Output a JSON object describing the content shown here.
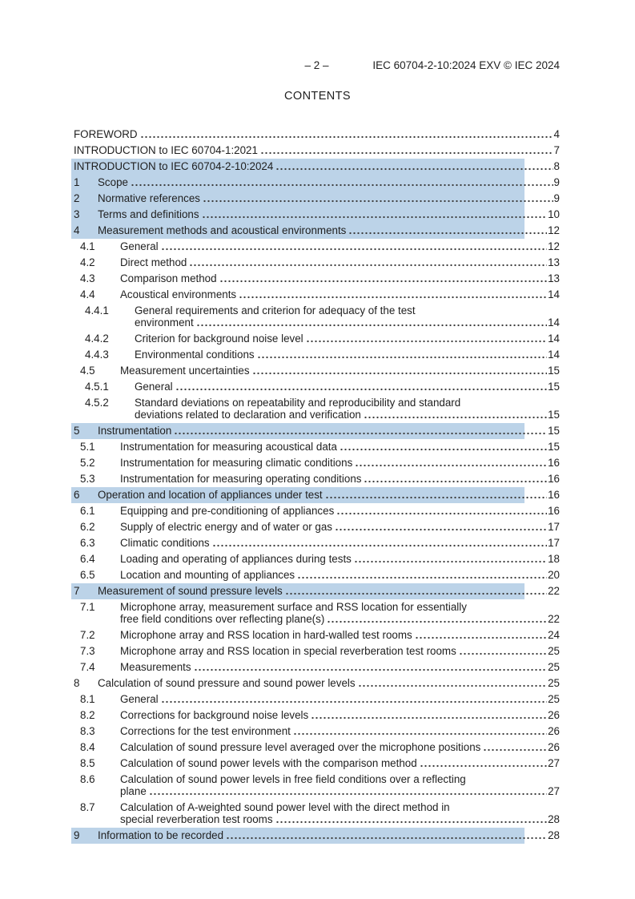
{
  "header": {
    "page_marker": "– 2 –",
    "doc_ref": "IEC 60704-2-10:2024 EXV © IEC 2024"
  },
  "title": "CONTENTS",
  "colors": {
    "highlight": "#bcd3e8",
    "text": "#1f1f1f"
  },
  "toc": {
    "entries": [
      {
        "level": 0,
        "num": "",
        "lines": [
          "FOREWORD"
        ],
        "page": "4",
        "hl": false
      },
      {
        "level": 0,
        "num": "",
        "lines": [
          "INTRODUCTION to IEC 60704-1:2021"
        ],
        "page": "7",
        "hl": false
      },
      {
        "level": 0,
        "num": "",
        "lines": [
          "INTRODUCTION to IEC 60704-2-10:2024"
        ],
        "page": "8",
        "hl": true
      },
      {
        "level": 0,
        "num": "1",
        "lines": [
          "Scope"
        ],
        "page": "9",
        "hl": true
      },
      {
        "level": 0,
        "num": "2",
        "lines": [
          "Normative references"
        ],
        "page": "9",
        "hl": true
      },
      {
        "level": 0,
        "num": "3",
        "lines": [
          "Terms and definitions"
        ],
        "page": "10",
        "hl": true
      },
      {
        "level": 0,
        "num": "4",
        "lines": [
          "Measurement methods and acoustical environments"
        ],
        "page": "12",
        "hl": true
      },
      {
        "level": 1,
        "num": "4.1",
        "lines": [
          "General"
        ],
        "page": "12",
        "hl": false
      },
      {
        "level": 1,
        "num": "4.2",
        "lines": [
          "Direct method"
        ],
        "page": "13",
        "hl": false
      },
      {
        "level": 1,
        "num": "4.3",
        "lines": [
          "Comparison method"
        ],
        "page": "13",
        "hl": false
      },
      {
        "level": 1,
        "num": "4.4",
        "lines": [
          "Acoustical environments"
        ],
        "page": "14",
        "hl": false
      },
      {
        "level": 2,
        "num": "4.4.1",
        "lines": [
          "General requirements and criterion for adequacy of the test",
          "environment"
        ],
        "page": "14",
        "hl": false
      },
      {
        "level": 2,
        "num": "4.4.2",
        "lines": [
          "Criterion for background noise level"
        ],
        "page": "14",
        "hl": false
      },
      {
        "level": 2,
        "num": "4.4.3",
        "lines": [
          "Environmental conditions"
        ],
        "page": "14",
        "hl": false
      },
      {
        "level": 1,
        "num": "4.5",
        "lines": [
          "Measurement uncertainties"
        ],
        "page": "15",
        "hl": false
      },
      {
        "level": 2,
        "num": "4.5.1",
        "lines": [
          "General"
        ],
        "page": "15",
        "hl": false
      },
      {
        "level": 2,
        "num": "4.5.2",
        "lines": [
          "Standard deviations on repeatability and reproducibility and standard",
          "deviations related to declaration and verification"
        ],
        "page": "15",
        "hl": false
      },
      {
        "level": 0,
        "num": "5",
        "lines": [
          "Instrumentation"
        ],
        "page": "15",
        "hl": true
      },
      {
        "level": 1,
        "num": "5.1",
        "lines": [
          "Instrumentation for measuring acoustical data"
        ],
        "page": "15",
        "hl": false
      },
      {
        "level": 1,
        "num": "5.2",
        "lines": [
          "Instrumentation for measuring climatic conditions"
        ],
        "page": "16",
        "hl": false
      },
      {
        "level": 1,
        "num": "5.3",
        "lines": [
          "Instrumentation for measuring operating conditions"
        ],
        "page": "16",
        "hl": false
      },
      {
        "level": 0,
        "num": "6",
        "lines": [
          "Operation and location of appliances under test"
        ],
        "page": "16",
        "hl": true
      },
      {
        "level": 1,
        "num": "6.1",
        "lines": [
          "Equipping and pre-conditioning of appliances"
        ],
        "page": "16",
        "hl": false
      },
      {
        "level": 1,
        "num": "6.2",
        "lines": [
          "Supply of electric energy and of water or gas"
        ],
        "page": "17",
        "hl": false
      },
      {
        "level": 1,
        "num": "6.3",
        "lines": [
          "Climatic conditions"
        ],
        "page": "17",
        "hl": false
      },
      {
        "level": 1,
        "num": "6.4",
        "lines": [
          "Loading and operating of appliances during tests"
        ],
        "page": "18",
        "hl": false
      },
      {
        "level": 1,
        "num": "6.5",
        "lines": [
          "Location and mounting of appliances"
        ],
        "page": "20",
        "hl": false
      },
      {
        "level": 0,
        "num": "7",
        "lines": [
          "Measurement of sound pressure levels"
        ],
        "page": "22",
        "hl": true
      },
      {
        "level": 1,
        "num": "7.1",
        "lines": [
          "Microphone array, measurement surface and RSS location for essentially",
          "free field conditions over reflecting plane(s)"
        ],
        "page": "22",
        "hl": false
      },
      {
        "level": 1,
        "num": "7.2",
        "lines": [
          "Microphone array and RSS location in hard-walled test rooms"
        ],
        "page": "24",
        "hl": false
      },
      {
        "level": 1,
        "num": "7.3",
        "lines": [
          "Microphone array and RSS location in special reverberation test rooms"
        ],
        "page": "25",
        "hl": false
      },
      {
        "level": 1,
        "num": "7.4",
        "lines": [
          "Measurements"
        ],
        "page": "25",
        "hl": false
      },
      {
        "level": 0,
        "num": "8",
        "lines": [
          "Calculation of sound pressure and sound power levels"
        ],
        "page": "25",
        "hl": false
      },
      {
        "level": 1,
        "num": "8.1",
        "lines": [
          "General"
        ],
        "page": "25",
        "hl": false
      },
      {
        "level": 1,
        "num": "8.2",
        "lines": [
          "Corrections for background noise levels"
        ],
        "page": "26",
        "hl": false
      },
      {
        "level": 1,
        "num": "8.3",
        "lines": [
          "Corrections for the test environment"
        ],
        "page": "26",
        "hl": false
      },
      {
        "level": 1,
        "num": "8.4",
        "lines": [
          "Calculation of sound pressure level averaged over the microphone positions"
        ],
        "page": "26",
        "hl": false
      },
      {
        "level": 1,
        "num": "8.5",
        "lines": [
          "Calculation of sound power levels with the comparison method"
        ],
        "page": "27",
        "hl": false
      },
      {
        "level": 1,
        "num": "8.6",
        "lines": [
          "Calculation of sound power levels in free field conditions over a reflecting",
          "plane"
        ],
        "page": "27",
        "hl": false
      },
      {
        "level": 1,
        "num": "8.7",
        "lines": [
          "Calculation of A-weighted sound power level with the direct method in",
          "special reverberation test rooms"
        ],
        "page": "28",
        "hl": false
      },
      {
        "level": 0,
        "num": "9",
        "lines": [
          "Information to be recorded"
        ],
        "page": "28",
        "hl": true
      }
    ]
  }
}
